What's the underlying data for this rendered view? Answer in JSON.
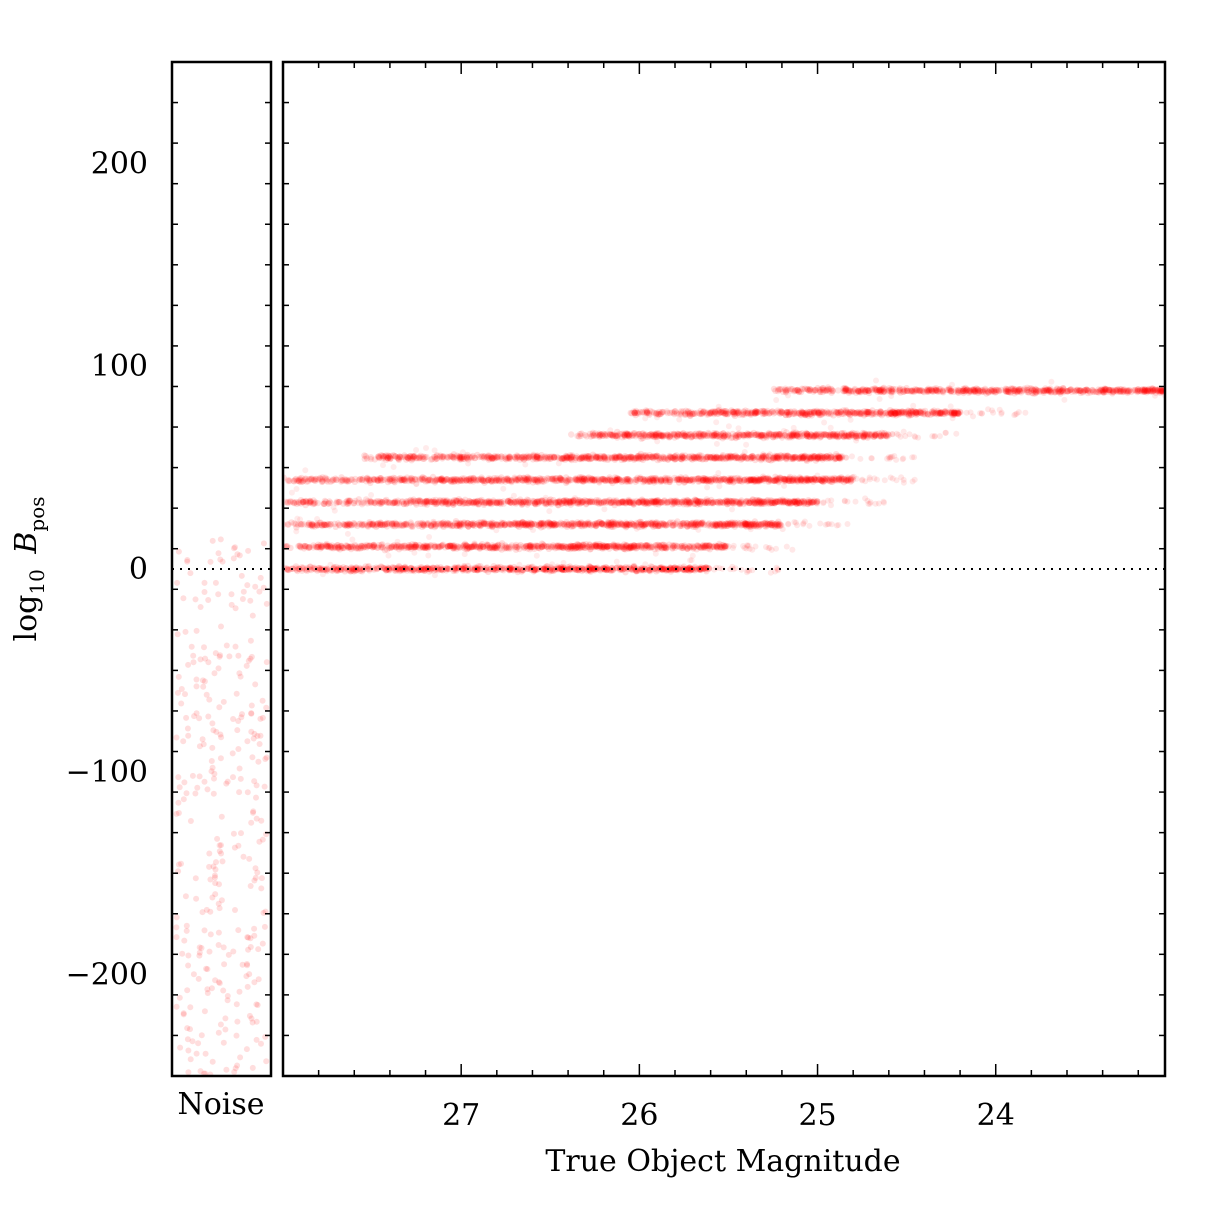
{
  "chart_data": {
    "type": "scatter",
    "ylabel": "log10 B_pos",
    "ylabel_parts": {
      "base": "log",
      "sub": "10",
      "var": "B",
      "var_sub": "pos"
    },
    "ylim": [
      -250,
      250
    ],
    "yticks": [
      200,
      100,
      0,
      -100,
      -200
    ],
    "ytick_labels": [
      "200",
      "100",
      "0",
      "−100",
      "−200"
    ],
    "reference_line": {
      "y": 0,
      "style": "dotted",
      "color": "#000000"
    },
    "marker_color": "#ff0000",
    "panels": [
      {
        "name": "noise",
        "xlabel": "Noise",
        "x_ticks": [],
        "points_description_range": {
          "ymin": -250,
          "ymax": 16
        },
        "approx_point_count": 320
      },
      {
        "name": "main",
        "xlabel": "True Object Magnitude",
        "xlim": [
          28.0,
          23.05
        ],
        "xaxis_inverted": true,
        "xticks": [
          27,
          26,
          25,
          24
        ],
        "xtick_labels": [
          "27",
          "26",
          "25",
          "24"
        ],
        "bands": [
          {
            "y": 0,
            "x_bright": 25.6,
            "x_faint": 28.0
          },
          {
            "y": 11,
            "x_bright": 25.5,
            "x_faint": 28.0
          },
          {
            "y": 22,
            "x_bright": 25.2,
            "x_faint": 28.0
          },
          {
            "y": 33,
            "x_bright": 25.0,
            "x_faint": 28.0
          },
          {
            "y": 44,
            "x_bright": 24.8,
            "x_faint": 28.0
          },
          {
            "y": 55,
            "x_bright": 24.85,
            "x_faint": 27.55
          },
          {
            "y": 66,
            "x_bright": 24.6,
            "x_faint": 26.4
          },
          {
            "y": 77,
            "x_bright": 24.2,
            "x_faint": 26.05
          },
          {
            "y": 88,
            "x_bright": 23.05,
            "x_faint": 25.25
          }
        ]
      }
    ]
  }
}
